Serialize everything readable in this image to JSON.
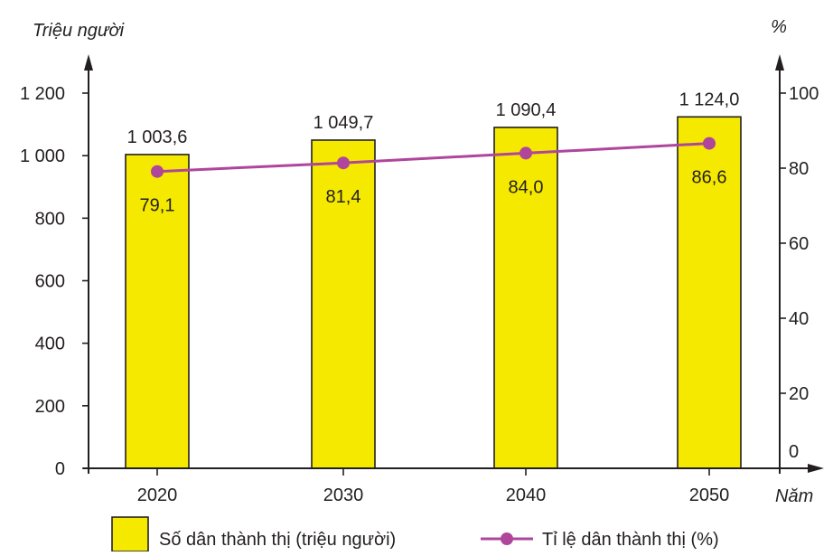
{
  "chart_data": {
    "type": "bar",
    "categories": [
      "2020",
      "2030",
      "2040",
      "2050"
    ],
    "series": [
      {
        "name": "Số dân thành thị (triệu người)",
        "kind": "bar",
        "axis": "left",
        "values": [
          1003.6,
          1049.7,
          1090.4,
          1124.0
        ],
        "labels": [
          "1 003,6",
          "1 049,7",
          "1 090,4",
          "1 124,0"
        ],
        "color": "#f5e900"
      },
      {
        "name": "Tỉ lệ dân thành thị (%)",
        "kind": "line",
        "axis": "right",
        "values": [
          79.1,
          81.4,
          84.0,
          86.6
        ],
        "labels": [
          "79,1",
          "81,4",
          "84,0",
          "86,6"
        ],
        "color": "#b0459c"
      }
    ],
    "ylabel_left": "Triệu người",
    "ylabel_right": "%",
    "xlabel": "Năm",
    "ylim_left": [
      0,
      1200
    ],
    "ylim_right": [
      0,
      100
    ],
    "yticks_left": [
      {
        "value": 0,
        "label": "0"
      },
      {
        "value": 200,
        "label": "200"
      },
      {
        "value": 400,
        "label": "400"
      },
      {
        "value": 600,
        "label": "600"
      },
      {
        "value": 800,
        "label": "800"
      },
      {
        "value": 1000,
        "label": "1 000"
      },
      {
        "value": 1200,
        "label": "1 200"
      }
    ],
    "yticks_right": [
      {
        "value": 0,
        "label": "0"
      },
      {
        "value": 20,
        "label": "20"
      },
      {
        "value": 40,
        "label": "40"
      },
      {
        "value": 60,
        "label": "60"
      },
      {
        "value": 80,
        "label": "80"
      },
      {
        "value": 100,
        "label": "100"
      }
    ],
    "grid": false,
    "legend_position": "bottom"
  }
}
